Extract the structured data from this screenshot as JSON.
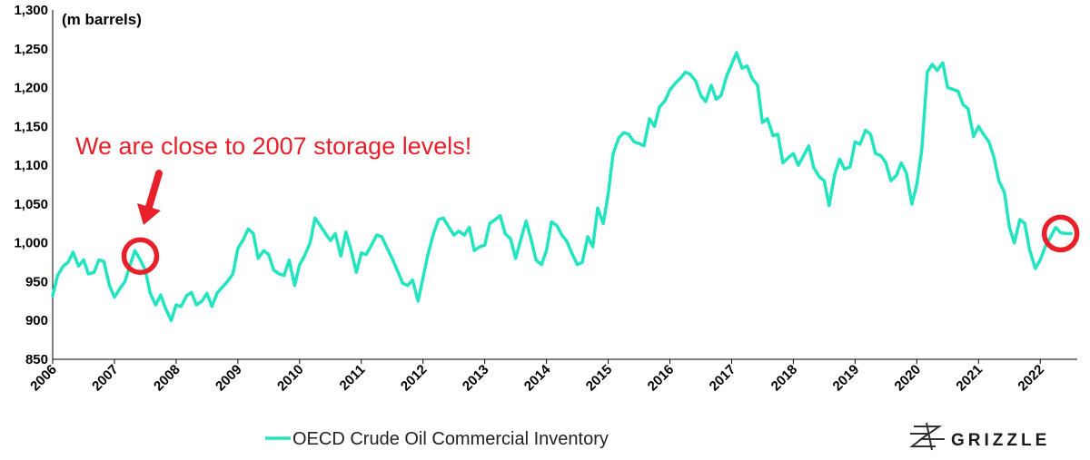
{
  "chart_data": {
    "type": "line",
    "unit_label": "(m barrels)",
    "ylim": [
      850,
      1300
    ],
    "yticks": [
      850,
      900,
      950,
      1000,
      1050,
      1100,
      1150,
      1200,
      1250,
      1300
    ],
    "ytick_labels": [
      "850",
      "900",
      "950",
      "1,000",
      "1,050",
      "1,100",
      "1,150",
      "1,200",
      "1,250",
      "1,300"
    ],
    "xlim": [
      2006,
      2022.6
    ],
    "xticks": [
      "2006",
      "2007",
      "2008",
      "2009",
      "2010",
      "2011",
      "2012",
      "2013",
      "2014",
      "2015",
      "2016",
      "2017",
      "2018",
      "2019",
      "2020",
      "2021",
      "2022"
    ],
    "grid": false,
    "legend_position": "bottom",
    "series": [
      {
        "name": "OECD Crude Oil Commercial Inventory",
        "color": "#22e5c0",
        "x": [
          2006.0,
          2006.08,
          2006.17,
          2006.25,
          2006.33,
          2006.42,
          2006.5,
          2006.58,
          2006.67,
          2006.75,
          2006.83,
          2006.92,
          2007.0,
          2007.08,
          2007.17,
          2007.25,
          2007.33,
          2007.42,
          2007.5,
          2007.58,
          2007.67,
          2007.75,
          2007.83,
          2007.92,
          2008.0,
          2008.08,
          2008.17,
          2008.25,
          2008.33,
          2008.42,
          2008.5,
          2008.58,
          2008.67,
          2008.75,
          2008.83,
          2008.92,
          2009.0,
          2009.08,
          2009.17,
          2009.25,
          2009.33,
          2009.42,
          2009.5,
          2009.58,
          2009.67,
          2009.75,
          2009.83,
          2009.92,
          2010.0,
          2010.08,
          2010.17,
          2010.25,
          2010.33,
          2010.42,
          2010.5,
          2010.58,
          2010.67,
          2010.75,
          2010.83,
          2010.92,
          2011.0,
          2011.08,
          2011.17,
          2011.25,
          2011.33,
          2011.42,
          2011.5,
          2011.58,
          2011.67,
          2011.75,
          2011.83,
          2011.92,
          2012.0,
          2012.08,
          2012.17,
          2012.25,
          2012.33,
          2012.42,
          2012.5,
          2012.58,
          2012.67,
          2012.75,
          2012.83,
          2012.92,
          2013.0,
          2013.08,
          2013.17,
          2013.25,
          2013.33,
          2013.42,
          2013.5,
          2013.58,
          2013.67,
          2013.75,
          2013.83,
          2013.92,
          2014.0,
          2014.08,
          2014.17,
          2014.25,
          2014.33,
          2014.42,
          2014.5,
          2014.58,
          2014.67,
          2014.75,
          2014.83,
          2014.92,
          2015.0,
          2015.08,
          2015.17,
          2015.25,
          2015.33,
          2015.42,
          2015.5,
          2015.58,
          2015.67,
          2015.75,
          2015.83,
          2015.92,
          2016.0,
          2016.08,
          2016.17,
          2016.25,
          2016.33,
          2016.42,
          2016.5,
          2016.58,
          2016.67,
          2016.75,
          2016.83,
          2016.92,
          2017.0,
          2017.08,
          2017.17,
          2017.25,
          2017.33,
          2017.42,
          2017.5,
          2017.58,
          2017.67,
          2017.75,
          2017.83,
          2017.92,
          2018.0,
          2018.08,
          2018.17,
          2018.25,
          2018.33,
          2018.42,
          2018.5,
          2018.58,
          2018.67,
          2018.75,
          2018.83,
          2018.92,
          2019.0,
          2019.08,
          2019.17,
          2019.25,
          2019.33,
          2019.42,
          2019.5,
          2019.58,
          2019.67,
          2019.75,
          2019.83,
          2019.92,
          2020.0,
          2020.08,
          2020.17,
          2020.25,
          2020.33,
          2020.42,
          2020.5,
          2020.58,
          2020.67,
          2020.75,
          2020.83,
          2020.92,
          2021.0,
          2021.08,
          2021.17,
          2021.25,
          2021.33,
          2021.42,
          2021.5,
          2021.58,
          2021.67,
          2021.75,
          2021.83,
          2021.92,
          2022.0,
          2022.08,
          2022.17,
          2022.25,
          2022.33,
          2022.42,
          2022.5
        ],
        "values": [
          932,
          958,
          970,
          975,
          988,
          970,
          978,
          960,
          962,
          978,
          976,
          945,
          930,
          940,
          950,
          970,
          990,
          978,
          965,
          935,
          920,
          933,
          915,
          900,
          920,
          918,
          932,
          936,
          920,
          925,
          935,
          918,
          936,
          943,
          950,
          960,
          993,
          1003,
          1018,
          1012,
          980,
          990,
          985,
          965,
          960,
          958,
          978,
          945,
          972,
          983,
          1000,
          1032,
          1023,
          1012,
          1003,
          1012,
          983,
          1014,
          992,
          962,
          987,
          985,
          998,
          1010,
          1008,
          993,
          980,
          965,
          948,
          945,
          952,
          925,
          955,
          985,
          1012,
          1030,
          1032,
          1020,
          1010,
          1015,
          1010,
          1020,
          990,
          995,
          997,
          1025,
          1030,
          1035,
          1012,
          1005,
          980,
          1003,
          1028,
          1005,
          978,
          972,
          990,
          1027,
          1022,
          1010,
          1002,
          985,
          972,
          975,
          1008,
          995,
          1045,
          1025,
          1063,
          1115,
          1135,
          1142,
          1140,
          1130,
          1128,
          1125,
          1160,
          1150,
          1175,
          1183,
          1197,
          1205,
          1212,
          1220,
          1217,
          1208,
          1190,
          1182,
          1203,
          1185,
          1190,
          1215,
          1230,
          1245,
          1225,
          1228,
          1212,
          1203,
          1155,
          1160,
          1138,
          1140,
          1103,
          1110,
          1115,
          1100,
          1113,
          1125,
          1097,
          1085,
          1080,
          1048,
          1088,
          1108,
          1095,
          1098,
          1130,
          1127,
          1145,
          1140,
          1115,
          1112,
          1103,
          1080,
          1087,
          1103,
          1090,
          1050,
          1075,
          1120,
          1220,
          1230,
          1222,
          1232,
          1200,
          1198,
          1195,
          1178,
          1173,
          1137,
          1150,
          1140,
          1130,
          1110,
          1080,
          1065,
          1020,
          1000,
          1030,
          1025,
          990,
          967,
          978,
          995,
          1008,
          1020,
          1013,
          1012,
          1012
        ]
      }
    ],
    "annotations": [
      {
        "text": "We are close to 2007 storage levels!",
        "color": "#e8202a"
      }
    ],
    "highlight_circles": [
      {
        "x": 2007.42,
        "y": 983,
        "color": "#e8202a"
      },
      {
        "x": 2022.33,
        "y": 1012,
        "color": "#e8202a"
      }
    ]
  },
  "legend": {
    "label": "OECD Crude Oil Commercial Inventory"
  },
  "brand": {
    "name": "GRIZZLE",
    "icon": "grizzle-logo-icon"
  }
}
